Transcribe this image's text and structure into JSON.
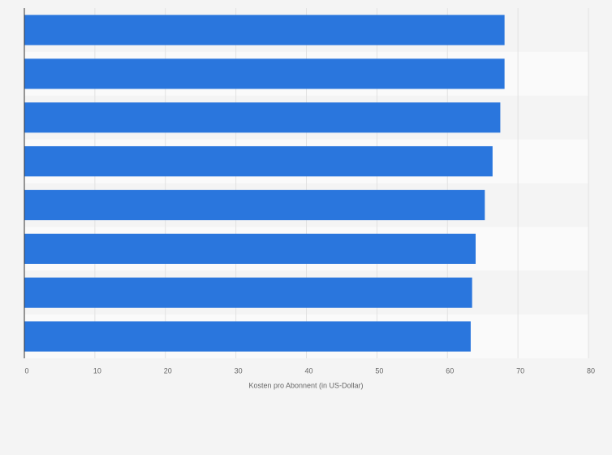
{
  "chart_data": {
    "type": "barh",
    "categories": [
      null,
      null,
      null,
      null,
      null,
      null,
      null,
      null
    ],
    "values": [
      68.1,
      68.1,
      67.5,
      66.4,
      65.3,
      64.0,
      63.5,
      63.3
    ],
    "color": "#2a76dd",
    "x_label": "Kosten pro Abonnent (in US-Dollar)",
    "xlim": [
      0,
      80
    ],
    "xticks": [
      0,
      10,
      20,
      30,
      40,
      50,
      60,
      70,
      80
    ],
    "grid": true
  }
}
